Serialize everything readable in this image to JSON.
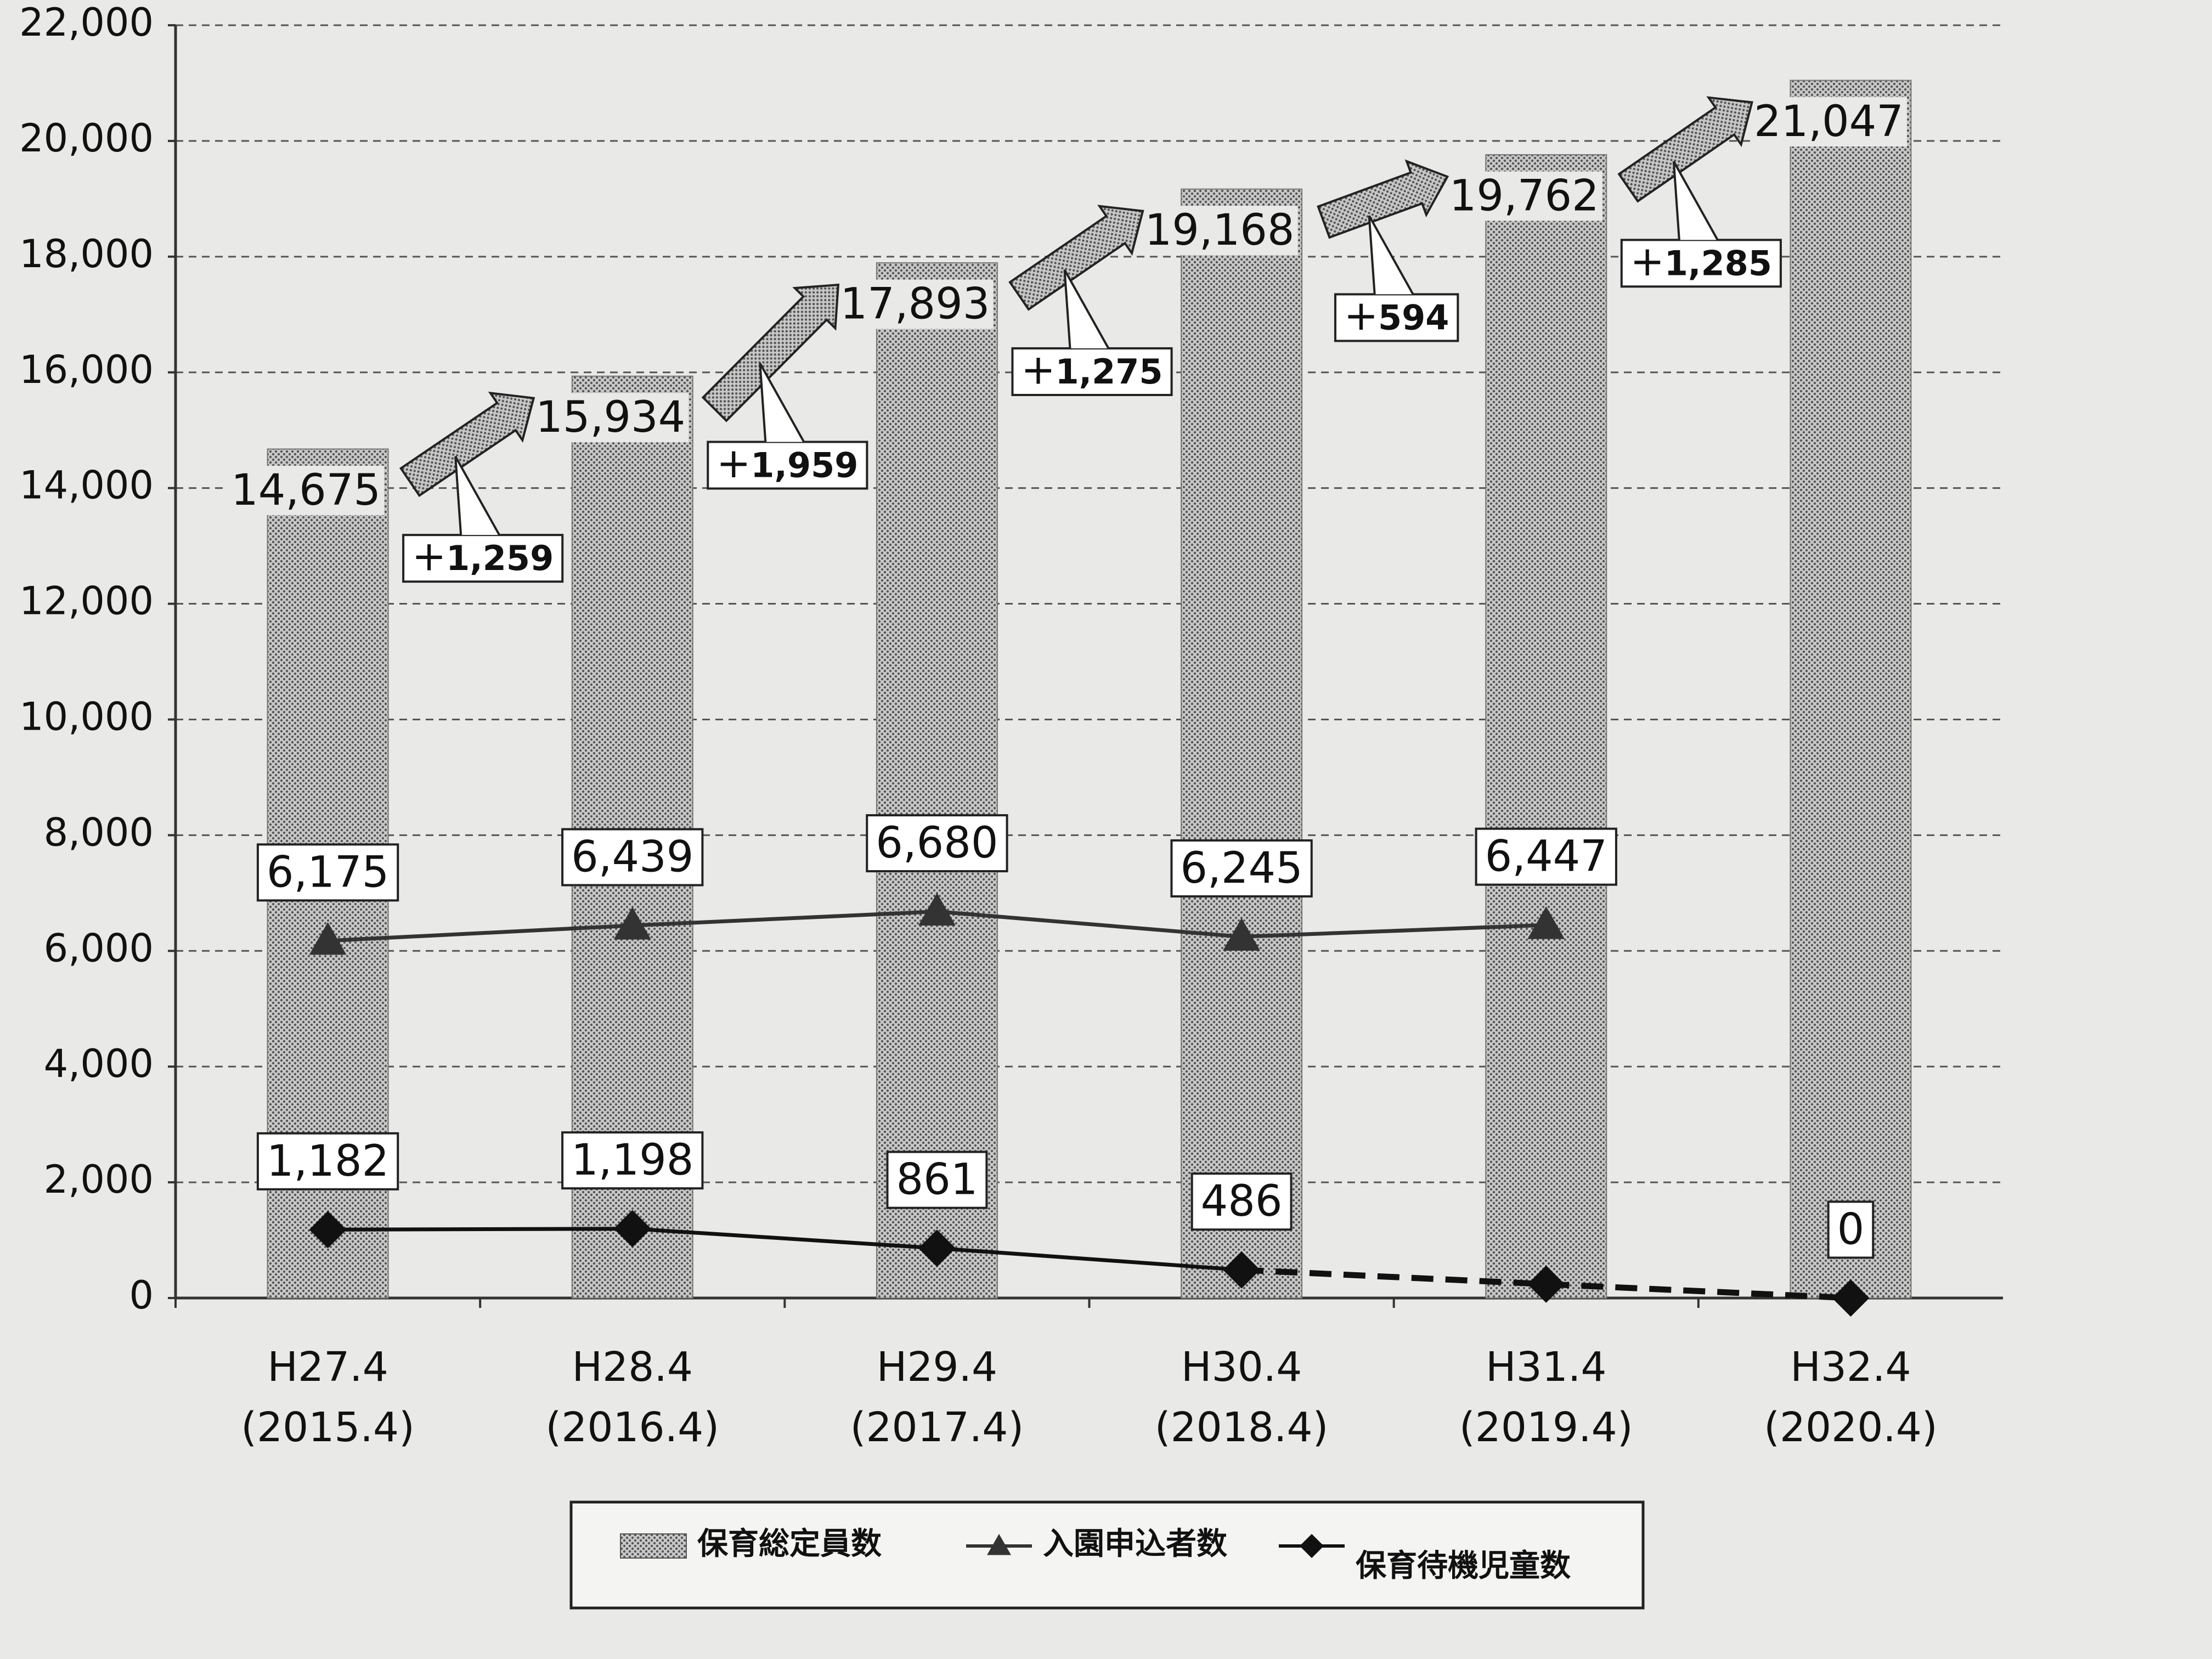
{
  "chart_data": {
    "type": "bar",
    "categories": [
      "H27.4 (2015.4)",
      "H28.4 (2016.4)",
      "H29.4 (2017.4)",
      "H30.4 (2018.4)",
      "H31.4 (2019.4)",
      "H32.4 (2020.4)"
    ],
    "series": [
      {
        "name": "保育総定員数",
        "type": "bar",
        "color": "#9a9a9a",
        "values": [
          14675,
          15934,
          17893,
          19168,
          19762,
          21047
        ],
        "value_labels": [
          "14,675",
          "15,934",
          "17,893",
          "19,168",
          "19,762",
          "21,047"
        ]
      },
      {
        "name": "入園申込者数",
        "type": "line",
        "marker": "triangle",
        "color": "#333333",
        "values": [
          6175,
          6439,
          6680,
          6245,
          6447,
          null
        ],
        "value_labels": [
          "6,175",
          "6,439",
          "6,680",
          "6,245",
          "6,447",
          null
        ]
      },
      {
        "name": "保育待機児童数",
        "type": "line",
        "marker": "diamond",
        "color": "#111111",
        "dash_from": 3,
        "values": [
          1182,
          1198,
          861,
          486,
          240,
          0
        ],
        "value_labels": [
          "1,182",
          "1,198",
          "861",
          "486",
          null,
          "0"
        ]
      }
    ],
    "annotations": [
      "＋1,259",
      "＋1,959",
      "＋1,275",
      "＋594",
      "＋1,285"
    ],
    "ylim": [
      0,
      22000
    ],
    "yticks": [
      0,
      {
        "value": 2000,
        "label": "2,000"
      },
      {
        "value": 4000,
        "label": "4,000"
      },
      {
        "value": 6000,
        "label": "6,000"
      },
      {
        "value": 8000,
        "label": "8,000"
      },
      {
        "value": 10000,
        "label": "10,000"
      },
      {
        "value": 12000,
        "label": "12,000"
      },
      {
        "value": 14000,
        "label": "14,000"
      },
      {
        "value": 16000,
        "label": "16,000"
      },
      {
        "value": 18000,
        "label": "18,000"
      },
      {
        "value": 20000,
        "label": "20,000"
      },
      {
        "value": 22000,
        "label": "22,000"
      }
    ],
    "grid": true,
    "legend": "bottom"
  }
}
